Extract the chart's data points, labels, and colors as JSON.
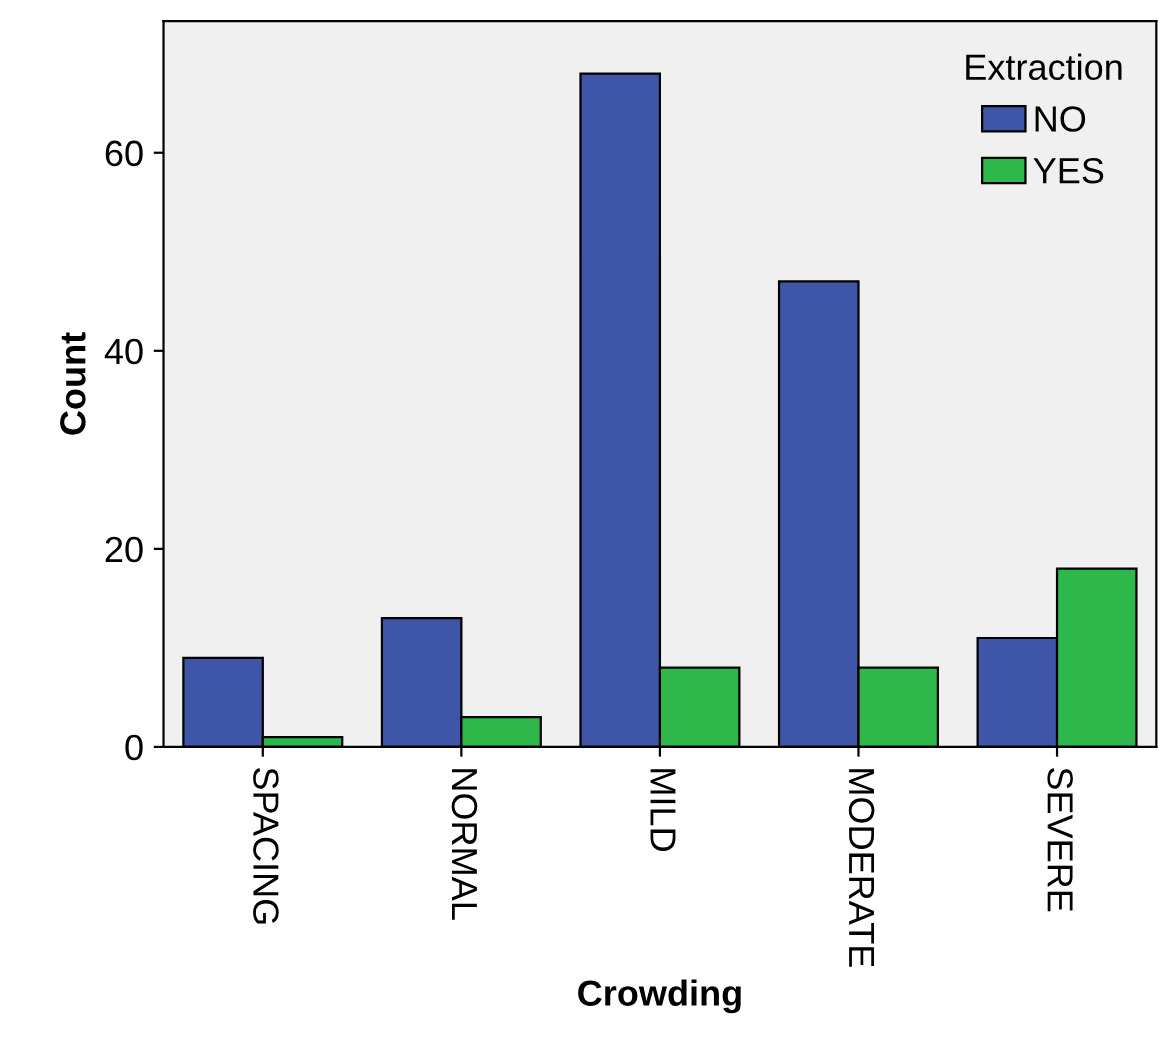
{
  "chart_data": {
    "type": "bar",
    "xlabel": "Crowding",
    "ylabel": "Count",
    "legend_title": "Extraction",
    "categories": [
      "SPACING",
      "NORMAL",
      "MILD",
      "MODERATE",
      "SEVERE"
    ],
    "series": [
      {
        "name": "NO",
        "color": "#3f56a8",
        "values": [
          9,
          13,
          68,
          47,
          11
        ]
      },
      {
        "name": "YES",
        "color": "#2eb84c",
        "values": [
          1,
          3,
          8,
          8,
          18
        ]
      }
    ],
    "ylim": [
      0,
      73.3
    ],
    "yticks": [
      0,
      20,
      40,
      60
    ],
    "grid": false,
    "legend": "top right"
  }
}
